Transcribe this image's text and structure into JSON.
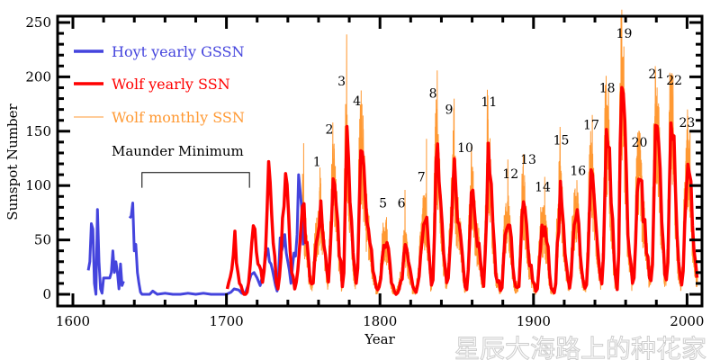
{
  "chart_data": {
    "type": "line",
    "title": "",
    "xlabel": "Year",
    "ylabel": "Sunspot Number",
    "xlim": [
      1600,
      2006
    ],
    "ylim": [
      -10,
      250
    ],
    "x_ticks": [
      "1600",
      "1700",
      "1800",
      "1900",
      "2000"
    ],
    "y_ticks": [
      "0",
      "50",
      "100",
      "150",
      "200",
      "250"
    ],
    "grid": false,
    "legend_placement": "top-left",
    "colors": {
      "hoyt": "#4444dd",
      "wolf_yearly": "#ff0000",
      "wolf_monthly": "#ff9933"
    },
    "series": [
      {
        "name": "Hoyt yearly GSSN",
        "points": [
          [
            1610,
            22
          ],
          [
            1611,
            30
          ],
          [
            1612,
            65
          ],
          [
            1613,
            60
          ],
          [
            1614,
            10
          ],
          [
            1615,
            0
          ],
          [
            1616,
            78
          ],
          [
            1617,
            30
          ],
          [
            1618,
            5
          ],
          [
            1619,
            1
          ],
          [
            1620,
            15
          ],
          [
            1621,
            15
          ],
          [
            1622,
            15
          ],
          [
            1623,
            15
          ],
          [
            1624,
            15
          ],
          [
            1625,
            20
          ],
          [
            1626,
            40
          ],
          [
            1627,
            20
          ],
          [
            1628,
            30
          ],
          [
            1629,
            20
          ],
          [
            1630,
            5
          ],
          [
            1631,
            28
          ],
          [
            1632,
            8
          ],
          [
            1633,
            12
          ],
          null,
          [
            1637,
            70
          ],
          [
            1638,
            72
          ],
          [
            1639,
            84
          ],
          [
            1640,
            40
          ],
          [
            1641,
            46
          ],
          [
            1642,
            20
          ],
          [
            1643,
            10
          ],
          [
            1644,
            2
          ],
          [
            1645,
            0
          ],
          [
            1650,
            0
          ],
          [
            1652,
            3
          ],
          [
            1655,
            0
          ],
          [
            1660,
            1
          ],
          [
            1665,
            0
          ],
          [
            1670,
            0
          ],
          [
            1675,
            1
          ],
          [
            1680,
            0
          ],
          [
            1685,
            1
          ],
          [
            1690,
            0
          ],
          [
            1695,
            0
          ],
          [
            1700,
            0
          ],
          [
            1703,
            2
          ],
          [
            1705,
            5
          ],
          [
            1708,
            4
          ],
          [
            1710,
            1
          ],
          [
            1712,
            0
          ],
          [
            1714,
            8
          ],
          [
            1716,
            18
          ],
          [
            1718,
            20
          ],
          [
            1720,
            15
          ],
          [
            1722,
            8
          ],
          [
            1724,
            20
          ],
          [
            1726,
            38
          ],
          [
            1727,
            42
          ],
          [
            1728,
            30
          ],
          [
            1729,
            28
          ],
          [
            1730,
            22
          ],
          [
            1731,
            15
          ],
          [
            1732,
            8
          ],
          [
            1733,
            3
          ],
          [
            1734,
            20
          ],
          [
            1735,
            52
          ],
          [
            1736,
            40
          ],
          [
            1737,
            45
          ],
          [
            1738,
            55
          ],
          [
            1739,
            38
          ],
          [
            1740,
            30
          ],
          [
            1741,
            22
          ],
          [
            1742,
            10
          ],
          [
            1743,
            25
          ],
          [
            1744,
            38
          ],
          [
            1745,
            35
          ],
          [
            1746,
            55
          ],
          [
            1747,
            110
          ],
          [
            1748,
            95
          ],
          [
            1749,
            80
          ],
          [
            1750,
            45
          ]
        ]
      },
      {
        "name": "Wolf yearly SSN",
        "start_year": 1700,
        "values": [
          5,
          11,
          16,
          23,
          36,
          58,
          29,
          20,
          10,
          8,
          3,
          0,
          0,
          2,
          11,
          27,
          47,
          63,
          60,
          39,
          28,
          26,
          22,
          11,
          21,
          40,
          78,
          122,
          103,
          73,
          47,
          35,
          11,
          5,
          16,
          34,
          70,
          81,
          111,
          101,
          73,
          40,
          20,
          16,
          5,
          11,
          22,
          40,
          60,
          80.9,
          83.4,
          47.7,
          47.8,
          30.7,
          12.2,
          9.6,
          10.2,
          32.4,
          47.6,
          54,
          62.9,
          85.9,
          61.2,
          45.1,
          36.4,
          20.9,
          11.4,
          37.8,
          69.8,
          106.1,
          100.8,
          81.6,
          66.5,
          34.8,
          30.6,
          7,
          19.8,
          92.5,
          154.4,
          125.9,
          84.8,
          68.1,
          38.5,
          22.8,
          10.2,
          24.1,
          82.9,
          132,
          130.9,
          118.1,
          89.9,
          66.6,
          60,
          46.9,
          41,
          21.3,
          16,
          6.4,
          4.1,
          6.8,
          14.5,
          34,
          45,
          43.1,
          47.5,
          42.2,
          28.1,
          10.1,
          8.1,
          2.5,
          0,
          1.4,
          5,
          12.2,
          13.9,
          35.4,
          45.8,
          41.1,
          30.1,
          23.9,
          15.6,
          6.6,
          4,
          1.8,
          8.5,
          16.6,
          36.3,
          49.6,
          64.2,
          67,
          70.9,
          47.8,
          27.5,
          8.5,
          13.2,
          56.9,
          121.5,
          138.3,
          103.2,
          85.7,
          64.6,
          36.7,
          24.2,
          10.7,
          15,
          40.1,
          61.5,
          98.5,
          124.7,
          96.3,
          66.6,
          64.5,
          54.1,
          39,
          20.6,
          6.7,
          4.3,
          22.7,
          54.8,
          93.8,
          95.8,
          77.2,
          59.1,
          44,
          47,
          30.5,
          16.3,
          7.3,
          37.6,
          74,
          139,
          111.2,
          101.6,
          66.2,
          44.7,
          17,
          11.3,
          12.4,
          3.4,
          6,
          32.3,
          54.3,
          59.7,
          63.7,
          63.5,
          52.2,
          25.4,
          13.1,
          6.8,
          6.3,
          7.1,
          35.6,
          73,
          85.1,
          78,
          64,
          41.8,
          26.2,
          26.7,
          12.1,
          9.5,
          2.7,
          5,
          24.4,
          42,
          63.5,
          53.8,
          62,
          48.5,
          43.9,
          18.6,
          5.7,
          3.6,
          1.4,
          9.6,
          47.4,
          57.1,
          103.9,
          80.6,
          63.6,
          37.6,
          26.1,
          14.2,
          5.8,
          16.7,
          44.3,
          63.9,
          69,
          77.8,
          64.9,
          35.7,
          21.2,
          11.1,
          5.7,
          8.7,
          36.1,
          79.7,
          114.4,
          109.6,
          88.8,
          67.8,
          47.5,
          30.6,
          16.3,
          9.6,
          33.2,
          92.6,
          151.6,
          136.3,
          134.7,
          83.9,
          69.4,
          31.5,
          13.9,
          4.4,
          38,
          141.7,
          190.2,
          184.8,
          159,
          112.3,
          53.9,
          37.6,
          27.9,
          10.2,
          15.1,
          47,
          93.8,
          105.9,
          105.5,
          104.5,
          66.6,
          68.9,
          38,
          34.5,
          15.5,
          12.6,
          27.5,
          92.5,
          155.4,
          154.6,
          140.4,
          115.9,
          66.6,
          45.9,
          17.9,
          13.4,
          29.4,
          100.2,
          157.6,
          142.6,
          145.7,
          94.3,
          54.6,
          29.9,
          17.5,
          8.6,
          21.5,
          64.3,
          93.3,
          119.6,
          111,
          104,
          63.7,
          40.4,
          29.8,
          15.2
        ]
      },
      {
        "name": "Wolf monthly SSN",
        "start_year": 1749,
        "peaks": [
          [
            1750,
            139
          ],
          [
            1761,
            107
          ],
          [
            1769,
            158
          ],
          [
            1778,
            239
          ],
          [
            1788,
            175
          ],
          [
            1804,
            71
          ],
          [
            1816,
            96
          ],
          [
            1830,
            143
          ],
          [
            1837,
            206
          ],
          [
            1848,
            180
          ],
          [
            1860,
            116
          ],
          [
            1870,
            176
          ],
          [
            1883,
            124
          ],
          [
            1893,
            129
          ],
          [
            1907,
            108
          ],
          [
            1917,
            154
          ],
          [
            1928,
            98
          ],
          [
            1938,
            165
          ],
          [
            1947,
            201
          ],
          [
            1957,
            254
          ],
          [
            1969,
            136
          ],
          [
            1979,
            188
          ],
          [
            1989,
            201
          ],
          [
            2000,
            170
          ]
        ]
      }
    ],
    "annotations": {
      "maunder_label": "Maunder Minimum",
      "maunder_range": [
        1645,
        1715
      ],
      "cycles": [
        {
          "label": "1",
          "year": 1759,
          "value": 122
        },
        {
          "label": "2",
          "year": 1767,
          "value": 152
        },
        {
          "label": "3",
          "year": 1775,
          "value": 196
        },
        {
          "label": "4",
          "year": 1785,
          "value": 178
        },
        {
          "label": "5",
          "year": 1802,
          "value": 84
        },
        {
          "label": "6",
          "year": 1814,
          "value": 84
        },
        {
          "label": "7",
          "year": 1827,
          "value": 108
        },
        {
          "label": "8",
          "year": 1834.5,
          "value": 185
        },
        {
          "label": "9",
          "year": 1845,
          "value": 170
        },
        {
          "label": "10",
          "year": 1855.6,
          "value": 135
        },
        {
          "label": "11",
          "year": 1871,
          "value": 177
        },
        {
          "label": "12",
          "year": 1885,
          "value": 111
        },
        {
          "label": "13",
          "year": 1895,
          "value": 124
        },
        {
          "label": "14",
          "year": 1906,
          "value": 99
        },
        {
          "label": "15",
          "year": 1918,
          "value": 142
        },
        {
          "label": "16",
          "year": 1929,
          "value": 114
        },
        {
          "label": "17",
          "year": 1937.6,
          "value": 156
        },
        {
          "label": "18",
          "year": 1948,
          "value": 190
        },
        {
          "label": "19",
          "year": 1959,
          "value": 240
        },
        {
          "label": "20",
          "year": 1969,
          "value": 140
        },
        {
          "label": "21",
          "year": 1980,
          "value": 203
        },
        {
          "label": "22",
          "year": 1990,
          "value": 197
        },
        {
          "label": "23",
          "year": 2000,
          "value": 158
        }
      ]
    }
  },
  "watermark": "星辰大海路上的种花家"
}
